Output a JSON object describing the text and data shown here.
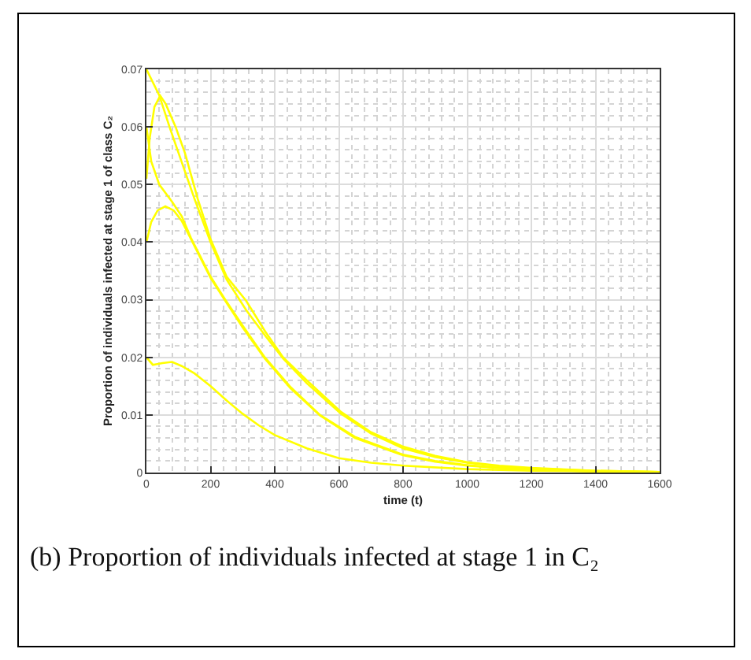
{
  "chart_data": {
    "type": "line",
    "xlabel": "time (t)",
    "ylabel": "Proportion of individuals infected at stage 1 of class C₂",
    "annotations": [
      "(b) Proportion of individuals infected at stage 1 in C₂"
    ],
    "xlim": [
      0,
      1600
    ],
    "ylim": [
      0,
      0.07
    ],
    "xticks": [
      0,
      200,
      400,
      600,
      800,
      1000,
      1200,
      1400,
      1600
    ],
    "yticks": [
      0,
      0.01,
      0.02,
      0.03,
      0.04,
      0.05,
      0.06,
      0.07
    ],
    "grid": true,
    "marker": "none",
    "line_style": "solid",
    "series": [
      {
        "color": "#ffff00",
        "x": [
          0,
          40,
          72,
          100,
          150,
          200,
          250,
          311,
          370,
          426,
          500,
          607,
          700,
          800,
          900,
          1000,
          1100,
          1200,
          1400,
          1600
        ],
        "values": [
          0.07,
          0.0655,
          0.06,
          0.0555,
          0.0475,
          0.04,
          0.0335,
          0.0282,
          0.0238,
          0.0198,
          0.0155,
          0.0102,
          0.0068,
          0.0042,
          0.0027,
          0.0017,
          0.0011,
          0.0007,
          0.0003,
          0.0001
        ]
      },
      {
        "color": "#ffff00",
        "x": [
          0,
          10,
          25,
          43,
          60,
          91,
          120,
          160,
          200,
          250,
          311,
          370,
          426,
          500,
          607,
          700,
          800,
          900,
          1000,
          1100,
          1200,
          1400,
          1600
        ],
        "values": [
          0.051,
          0.058,
          0.0635,
          0.0654,
          0.064,
          0.06,
          0.0555,
          0.0475,
          0.0405,
          0.034,
          0.0298,
          0.0245,
          0.02,
          0.016,
          0.0105,
          0.007,
          0.0045,
          0.0029,
          0.0018,
          0.0012,
          0.0008,
          0.0003,
          0.0001
        ]
      },
      {
        "color": "#ffff00",
        "x": [
          0,
          15,
          40,
          80,
          110,
          139,
          200,
          246,
          300,
          369,
          450,
          541,
          650,
          800,
          900,
          1000,
          1100,
          1200,
          1400,
          1600
        ],
        "values": [
          0.06,
          0.054,
          0.05,
          0.047,
          0.0445,
          0.0407,
          0.034,
          0.03,
          0.0255,
          0.02,
          0.0148,
          0.01,
          0.0062,
          0.0031,
          0.002,
          0.0013,
          0.0008,
          0.0005,
          0.0002,
          0.0001
        ]
      },
      {
        "color": "#ffff00",
        "x": [
          0,
          15,
          35,
          59,
          85,
          110,
          139,
          200,
          246,
          300,
          369,
          450,
          541,
          650,
          800,
          900,
          1000,
          1100,
          1200,
          1400,
          1600
        ],
        "values": [
          0.04,
          0.0435,
          0.0455,
          0.0462,
          0.0455,
          0.0437,
          0.0405,
          0.0338,
          0.0298,
          0.0252,
          0.0198,
          0.0146,
          0.0099,
          0.006,
          0.003,
          0.0019,
          0.0012,
          0.0008,
          0.0005,
          0.0002,
          0.0001
        ]
      },
      {
        "color": "#ffff00",
        "x": [
          0,
          20,
          50,
          80,
          110,
          150,
          200,
          250,
          300,
          350,
          400,
          500,
          600,
          700,
          800,
          1000,
          1200,
          1400,
          1600
        ],
        "values": [
          0.02,
          0.0187,
          0.019,
          0.0192,
          0.0185,
          0.0172,
          0.015,
          0.0125,
          0.0102,
          0.0082,
          0.0065,
          0.0042,
          0.0025,
          0.0017,
          0.0012,
          0.0006,
          0.0003,
          0.0002,
          0.0001
        ]
      }
    ]
  }
}
